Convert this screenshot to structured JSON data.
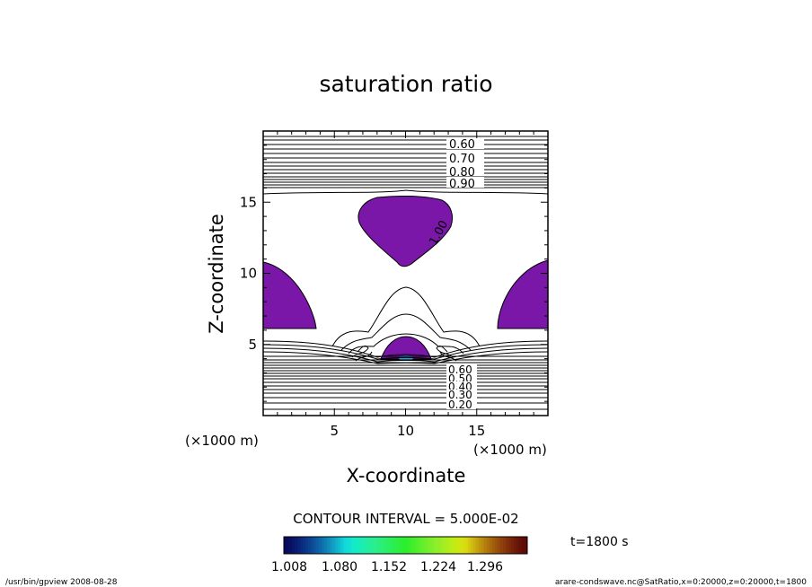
{
  "chart_data": {
    "type": "contour",
    "title": "saturation ratio",
    "xlabel": "X-coordinate",
    "ylabel": "Z-coordinate",
    "x_unit": "(×1000 m)",
    "z_unit": "(×1000 m)",
    "xlim": [
      0,
      20
    ],
    "ylim": [
      0,
      20
    ],
    "x_ticks": [
      "5",
      "10",
      "15"
    ],
    "y_ticks": [
      "5",
      "10",
      "15"
    ],
    "contour_interval_label": "CONTOUR INTERVAL = 5.000E-02",
    "contour_labels_upper": [
      "0.60",
      "0.70",
      "0.80",
      "0.90"
    ],
    "contour_label_cloud": "1.00",
    "contour_labels_lower": [
      "0.60",
      "0.50",
      "0.40",
      "0.30",
      "0.20"
    ],
    "shade_threshold": 1.0,
    "shade_color": "#7a16a8",
    "colorbar_tick_labels": [
      "1.008",
      "1.080",
      "1.152",
      "1.224",
      "1.296"
    ],
    "time_label": "t=1800 s",
    "footer_left": "/usr/bin/gpview   2008-08-28",
    "footer_right": "arare-condswave.nc@SatRatio,x=0:20000,z=0:20000,t=1800"
  }
}
